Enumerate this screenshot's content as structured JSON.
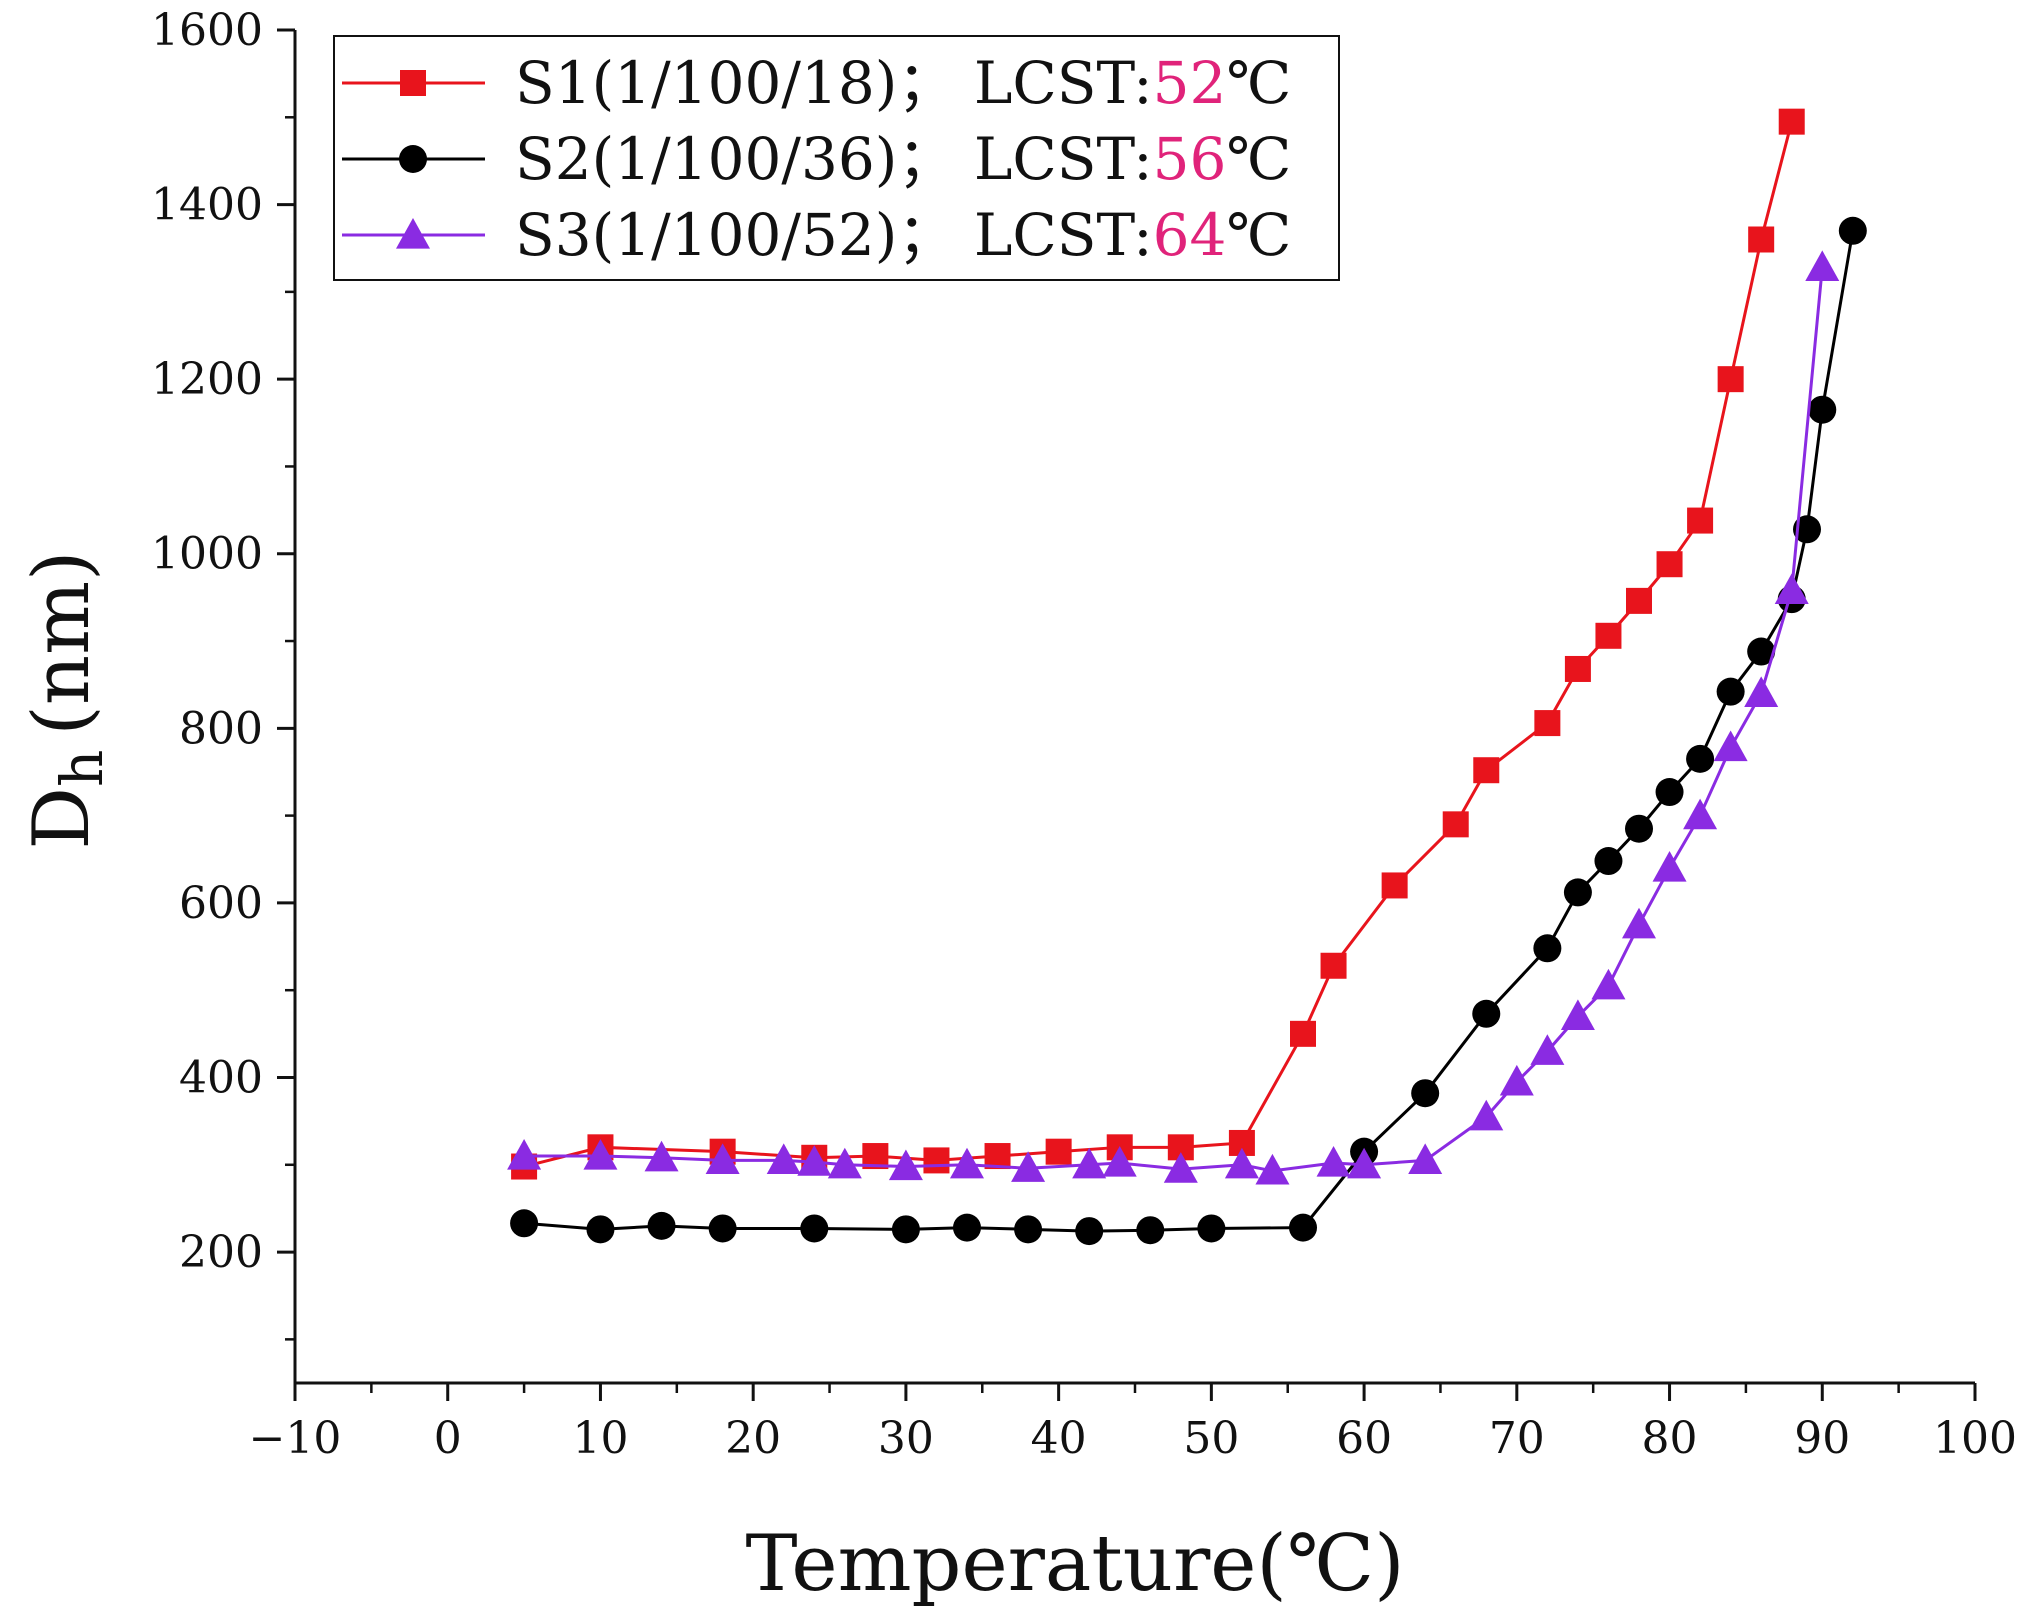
{
  "chart_data": {
    "type": "line",
    "title": "",
    "xlabel": "Temperature(℃)",
    "ylabel": {
      "main": "D",
      "sub": "h",
      "unit": "(nm)"
    },
    "xlim": [
      -10,
      100
    ],
    "ylim": [
      50,
      1600
    ],
    "x_ticks": [
      "-10",
      "0",
      "10",
      "20",
      "30",
      "40",
      "50",
      "60",
      "70",
      "80",
      "90",
      "100"
    ],
    "y_ticks": [
      "200",
      "400",
      "600",
      "800",
      "1000",
      "1200",
      "1400",
      "1600"
    ],
    "grid": false,
    "legend_position": "top-left",
    "series": [
      {
        "name": "S1",
        "legend": {
          "prefix": "S1(1/100/18)； LCST:",
          "value": "52",
          "unit": "℃"
        },
        "color": "#e8141c",
        "marker": "square",
        "x": [
          5,
          10,
          18,
          24,
          28,
          32,
          36,
          40,
          44,
          48,
          52,
          56,
          58,
          62,
          66,
          68,
          72,
          74,
          76,
          78,
          80,
          82,
          84,
          86,
          88
        ],
        "y": [
          298,
          320,
          315,
          308,
          310,
          305,
          310,
          315,
          320,
          320,
          325,
          450,
          528,
          620,
          690,
          752,
          806,
          868,
          906,
          946,
          988,
          1038,
          1200,
          1360,
          1495
        ]
      },
      {
        "name": "S2",
        "legend": {
          "prefix": "S2(1/100/36)； LCST:",
          "value": "56",
          "unit": "℃"
        },
        "color": "#000000",
        "marker": "circle",
        "x": [
          5,
          10,
          14,
          18,
          24,
          30,
          34,
          38,
          42,
          46,
          50,
          56,
          60,
          64,
          68,
          72,
          74,
          76,
          78,
          80,
          82,
          84,
          86,
          88,
          89,
          90,
          92
        ],
        "y": [
          233,
          226,
          230,
          227,
          227,
          226,
          228,
          226,
          224,
          225,
          227,
          228,
          315,
          382,
          473,
          548,
          612,
          648,
          685,
          727,
          765,
          842,
          888,
          948,
          1028,
          1165,
          1370
        ]
      },
      {
        "name": "S3",
        "legend": {
          "prefix": "S3(1/100/52)； LCST:",
          "value": "64",
          "unit": "℃"
        },
        "color": "#8a2be2",
        "marker": "triangle",
        "x": [
          5,
          10,
          14,
          18,
          22,
          24,
          26,
          30,
          34,
          38,
          42,
          44,
          48,
          52,
          54,
          58,
          60,
          64,
          68,
          70,
          72,
          74,
          76,
          78,
          80,
          82,
          84,
          86,
          88,
          90
        ],
        "y": [
          310,
          310,
          308,
          305,
          305,
          303,
          300,
          298,
          300,
          296,
          300,
          302,
          295,
          300,
          293,
          302,
          300,
          305,
          355,
          395,
          430,
          470,
          505,
          575,
          640,
          700,
          778,
          840,
          958,
          1328
        ]
      }
    ]
  }
}
